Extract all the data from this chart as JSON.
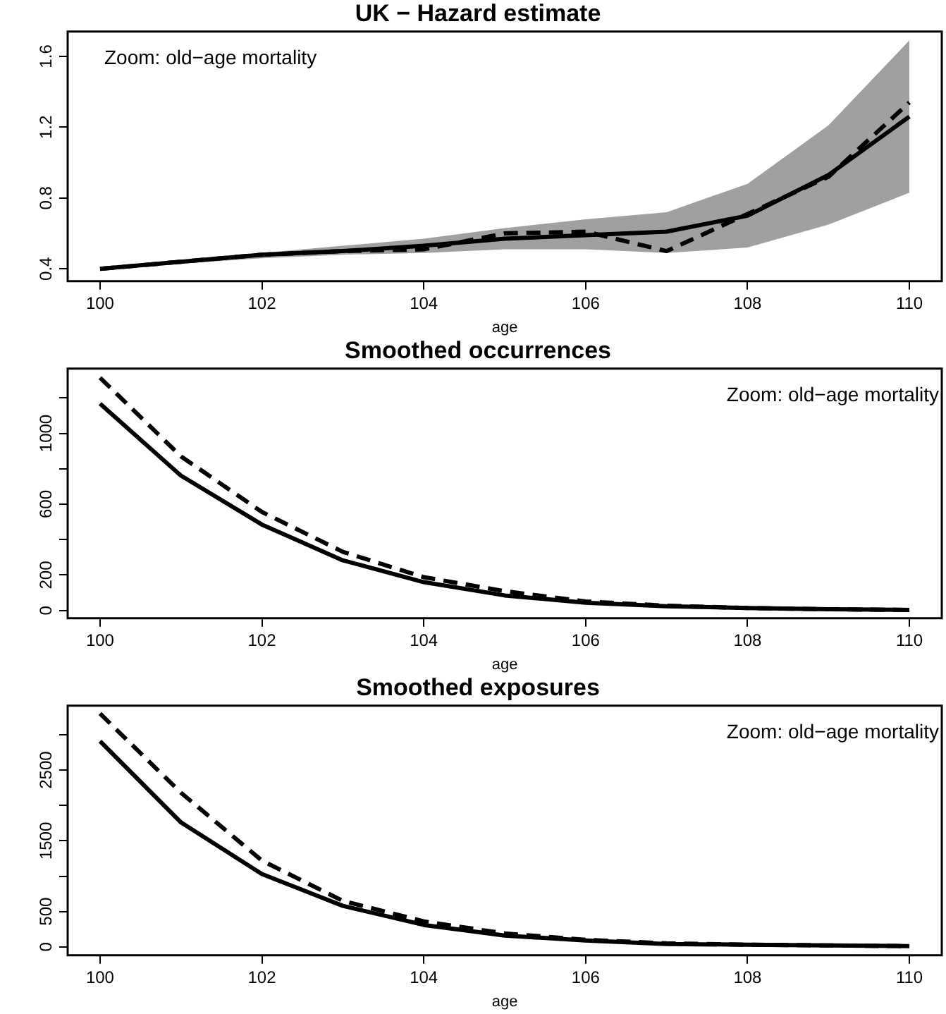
{
  "chart_data": [
    {
      "type": "line",
      "title": "UK − Hazard estimate",
      "xlabel": "age",
      "annotations": [
        "Zoom: old−age mortality"
      ],
      "x": [
        100,
        101,
        102,
        103,
        104,
        105,
        106,
        107,
        108,
        109,
        110
      ],
      "xlim": [
        99.6,
        110.4
      ],
      "xticks": [
        100,
        102,
        104,
        106,
        108,
        110
      ],
      "ylim": [
        0.33,
        1.74
      ],
      "yticks": [
        0.4,
        0.8,
        1.2,
        1.6
      ],
      "grid": false,
      "legend": false,
      "marker": "none",
      "series": [
        {
          "color": "#000000",
          "line_style": "solid",
          "values": [
            0.4,
            0.44,
            0.48,
            0.5,
            0.53,
            0.57,
            0.59,
            0.61,
            0.7,
            0.93,
            1.26
          ],
          "lower": [
            0.4,
            0.43,
            0.46,
            0.48,
            0.49,
            0.51,
            0.51,
            0.49,
            0.52,
            0.65,
            0.83
          ],
          "upper": [
            0.4,
            0.45,
            0.49,
            0.53,
            0.57,
            0.63,
            0.68,
            0.72,
            0.88,
            1.21,
            1.69
          ]
        },
        {
          "color": "#000000",
          "line_style": "dashed",
          "values": [
            0.4,
            0.44,
            0.48,
            0.5,
            0.51,
            0.6,
            0.61,
            0.5,
            0.71,
            0.92,
            1.34
          ]
        }
      ]
    },
    {
      "type": "line",
      "title": "Smoothed occurrences",
      "xlabel": "age",
      "annotations": [
        "Zoom: old−age mortality"
      ],
      "x": [
        100,
        101,
        102,
        103,
        104,
        105,
        106,
        107,
        108,
        109,
        110
      ],
      "xlim": [
        99.6,
        110.4
      ],
      "xticks": [
        100,
        102,
        104,
        106,
        108,
        110
      ],
      "ylim": [
        -44,
        1365
      ],
      "yticks": [
        0,
        200,
        {
          "value": 400,
          "label": null
        },
        600,
        {
          "value": 800,
          "label": null
        },
        1000,
        {
          "value": 1200,
          "label": null
        }
      ],
      "grid": false,
      "legend": false,
      "marker": "none",
      "series": [
        {
          "color": "#000000",
          "line_style": "solid",
          "values": [
            1167,
            761,
            485,
            283,
            160,
            85,
            44,
            24,
            14,
            7,
            3
          ]
        },
        {
          "color": "#000000",
          "line_style": "dashed",
          "values": [
            1314,
            870,
            556,
            331,
            188,
            109,
            51,
            27,
            14,
            7,
            3
          ]
        }
      ]
    },
    {
      "type": "line",
      "title": "Smoothed exposures",
      "xlabel": "age",
      "annotations": [
        "Zoom: old−age mortality"
      ],
      "x": [
        100,
        101,
        102,
        103,
        104,
        105,
        106,
        107,
        108,
        109,
        110
      ],
      "xlim": [
        99.6,
        110.4
      ],
      "xticks": [
        100,
        102,
        104,
        106,
        108,
        110
      ],
      "ylim": [
        -120,
        3411
      ],
      "yticks": [
        0,
        500,
        {
          "value": 1000,
          "label": null
        },
        1500,
        {
          "value": 2000,
          "label": null
        },
        2500,
        {
          "value": 3000,
          "label": null
        }
      ],
      "grid": false,
      "legend": false,
      "marker": "none",
      "series": [
        {
          "color": "#000000",
          "line_style": "solid",
          "values": [
            2910,
            1760,
            1030,
            580,
            310,
            160,
            90,
            40,
            30,
            20,
            10
          ]
        },
        {
          "color": "#000000",
          "line_style": "dashed",
          "values": [
            3300,
            2180,
            1220,
            650,
            360,
            190,
            100,
            50,
            30,
            20,
            10
          ]
        }
      ]
    }
  ]
}
